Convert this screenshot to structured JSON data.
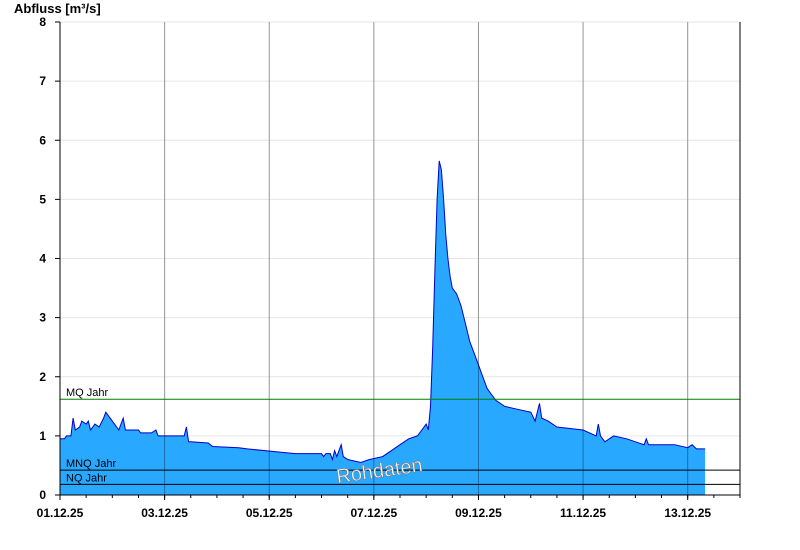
{
  "chart_data": {
    "type": "area",
    "ylabel": "Abfluss [m³/s]",
    "ylim": [
      0,
      8
    ],
    "yticks": [
      "0",
      "1",
      "2",
      "3",
      "4",
      "5",
      "6",
      "7",
      "8"
    ],
    "xlim": [
      "2025-12-01",
      "2025-12-14"
    ],
    "xticks": [
      {
        "date": "2025-12-01",
        "label": "01.12.25"
      },
      {
        "date": "2025-12-03",
        "label": "03.12.25"
      },
      {
        "date": "2025-12-05",
        "label": "05.12.25"
      },
      {
        "date": "2025-12-07",
        "label": "07.12.25"
      },
      {
        "date": "2025-12-09",
        "label": "09.12.25"
      },
      {
        "date": "2025-12-11",
        "label": "11.12.25"
      },
      {
        "date": "2025-12-13",
        "label": "13.12.25"
      }
    ],
    "grid": true,
    "series": [
      {
        "color": "#28a8ff",
        "line_color": "#0000cc",
        "points": [
          [
            "2025-12-01 00:00",
            0.95
          ],
          [
            "2025-12-01 02:00",
            0.95
          ],
          [
            "2025-12-01 03:00",
            1.0
          ],
          [
            "2025-12-01 05:00",
            1.0
          ],
          [
            "2025-12-01 06:00",
            1.3
          ],
          [
            "2025-12-01 07:00",
            1.1
          ],
          [
            "2025-12-01 09:00",
            1.15
          ],
          [
            "2025-12-01 10:00",
            1.25
          ],
          [
            "2025-12-01 12:00",
            1.2
          ],
          [
            "2025-12-01 13:00",
            1.25
          ],
          [
            "2025-12-01 14:00",
            1.1
          ],
          [
            "2025-12-01 16:00",
            1.2
          ],
          [
            "2025-12-01 18:00",
            1.15
          ],
          [
            "2025-12-01 20:00",
            1.3
          ],
          [
            "2025-12-01 21:00",
            1.4
          ],
          [
            "2025-12-01 23:00",
            1.3
          ],
          [
            "2025-12-02 01:00",
            1.2
          ],
          [
            "2025-12-02 03:00",
            1.1
          ],
          [
            "2025-12-02 05:00",
            1.3
          ],
          [
            "2025-12-02 06:00",
            1.1
          ],
          [
            "2025-12-02 12:00",
            1.1
          ],
          [
            "2025-12-02 13:00",
            1.05
          ],
          [
            "2025-12-02 18:00",
            1.05
          ],
          [
            "2025-12-02 20:00",
            1.1
          ],
          [
            "2025-12-02 21:00",
            1.0
          ],
          [
            "2025-12-03 09:00",
            1.0
          ],
          [
            "2025-12-03 10:00",
            1.15
          ],
          [
            "2025-12-03 11:00",
            0.9
          ],
          [
            "2025-12-03 12:00",
            0.9
          ],
          [
            "2025-12-03 20:00",
            0.88
          ],
          [
            "2025-12-03 22:00",
            0.82
          ],
          [
            "2025-12-04 10:00",
            0.8
          ],
          [
            "2025-12-04 14:00",
            0.78
          ],
          [
            "2025-12-05 06:00",
            0.72
          ],
          [
            "2025-12-05 12:00",
            0.7
          ],
          [
            "2025-12-06 00:00",
            0.7
          ],
          [
            "2025-12-06 01:00",
            0.65
          ],
          [
            "2025-12-06 02:00",
            0.7
          ],
          [
            "2025-12-06 04:00",
            0.7
          ],
          [
            "2025-12-06 05:00",
            0.6
          ],
          [
            "2025-12-06 06:00",
            0.75
          ],
          [
            "2025-12-06 07:00",
            0.65
          ],
          [
            "2025-12-06 09:00",
            0.85
          ],
          [
            "2025-12-06 10:00",
            0.65
          ],
          [
            "2025-12-06 12:00",
            0.6
          ],
          [
            "2025-12-06 18:00",
            0.55
          ],
          [
            "2025-12-06 22:00",
            0.6
          ],
          [
            "2025-12-07 04:00",
            0.65
          ],
          [
            "2025-12-07 08:00",
            0.75
          ],
          [
            "2025-12-07 12:00",
            0.85
          ],
          [
            "2025-12-07 16:00",
            0.95
          ],
          [
            "2025-12-07 20:00",
            1.0
          ],
          [
            "2025-12-07 22:00",
            1.1
          ],
          [
            "2025-12-08 00:00",
            1.2
          ],
          [
            "2025-12-08 01:00",
            1.1
          ],
          [
            "2025-12-08 02:00",
            1.5
          ],
          [
            "2025-12-08 03:00",
            2.5
          ],
          [
            "2025-12-08 04:00",
            3.8
          ],
          [
            "2025-12-08 05:00",
            5.0
          ],
          [
            "2025-12-08 06:00",
            5.65
          ],
          [
            "2025-12-08 07:00",
            5.5
          ],
          [
            "2025-12-08 08:00",
            5.0
          ],
          [
            "2025-12-08 09:00",
            4.4
          ],
          [
            "2025-12-08 10:00",
            4.0
          ],
          [
            "2025-12-08 11:00",
            3.7
          ],
          [
            "2025-12-08 12:00",
            3.5
          ],
          [
            "2025-12-08 14:00",
            3.4
          ],
          [
            "2025-12-08 16:00",
            3.2
          ],
          [
            "2025-12-08 18:00",
            2.9
          ],
          [
            "2025-12-08 20:00",
            2.6
          ],
          [
            "2025-12-08 22:00",
            2.4
          ],
          [
            "2025-12-09 00:00",
            2.2
          ],
          [
            "2025-12-09 02:00",
            2.0
          ],
          [
            "2025-12-09 04:00",
            1.8
          ],
          [
            "2025-12-09 06:00",
            1.7
          ],
          [
            "2025-12-09 08:00",
            1.6
          ],
          [
            "2025-12-09 12:00",
            1.5
          ],
          [
            "2025-12-09 18:00",
            1.45
          ],
          [
            "2025-12-10 00:00",
            1.4
          ],
          [
            "2025-12-10 02:00",
            1.25
          ],
          [
            "2025-12-10 04:00",
            1.55
          ],
          [
            "2025-12-10 05:00",
            1.3
          ],
          [
            "2025-12-10 08:00",
            1.25
          ],
          [
            "2025-12-10 12:00",
            1.15
          ],
          [
            "2025-12-11 00:00",
            1.1
          ],
          [
            "2025-12-11 06:00",
            1.0
          ],
          [
            "2025-12-11 07:00",
            1.2
          ],
          [
            "2025-12-11 08:00",
            1.0
          ],
          [
            "2025-12-11 10:00",
            0.9
          ],
          [
            "2025-12-11 14:00",
            1.0
          ],
          [
            "2025-12-11 20:00",
            0.95
          ],
          [
            "2025-12-12 00:00",
            0.9
          ],
          [
            "2025-12-12 04:00",
            0.85
          ],
          [
            "2025-12-12 05:00",
            0.95
          ],
          [
            "2025-12-12 06:00",
            0.85
          ],
          [
            "2025-12-12 18:00",
            0.85
          ],
          [
            "2025-12-13 00:00",
            0.8
          ],
          [
            "2025-12-13 02:00",
            0.85
          ],
          [
            "2025-12-13 04:00",
            0.78
          ],
          [
            "2025-12-13 08:00",
            0.78
          ]
        ]
      }
    ],
    "reference_lines": [
      {
        "label": "MQ Jahr",
        "value": 1.62,
        "color": "#008000"
      },
      {
        "label": "MNQ Jahr",
        "value": 0.42,
        "color": "#000000"
      },
      {
        "label": "NQ Jahr",
        "value": 0.18,
        "color": "#000000"
      }
    ],
    "watermark": "Rohdaten"
  }
}
